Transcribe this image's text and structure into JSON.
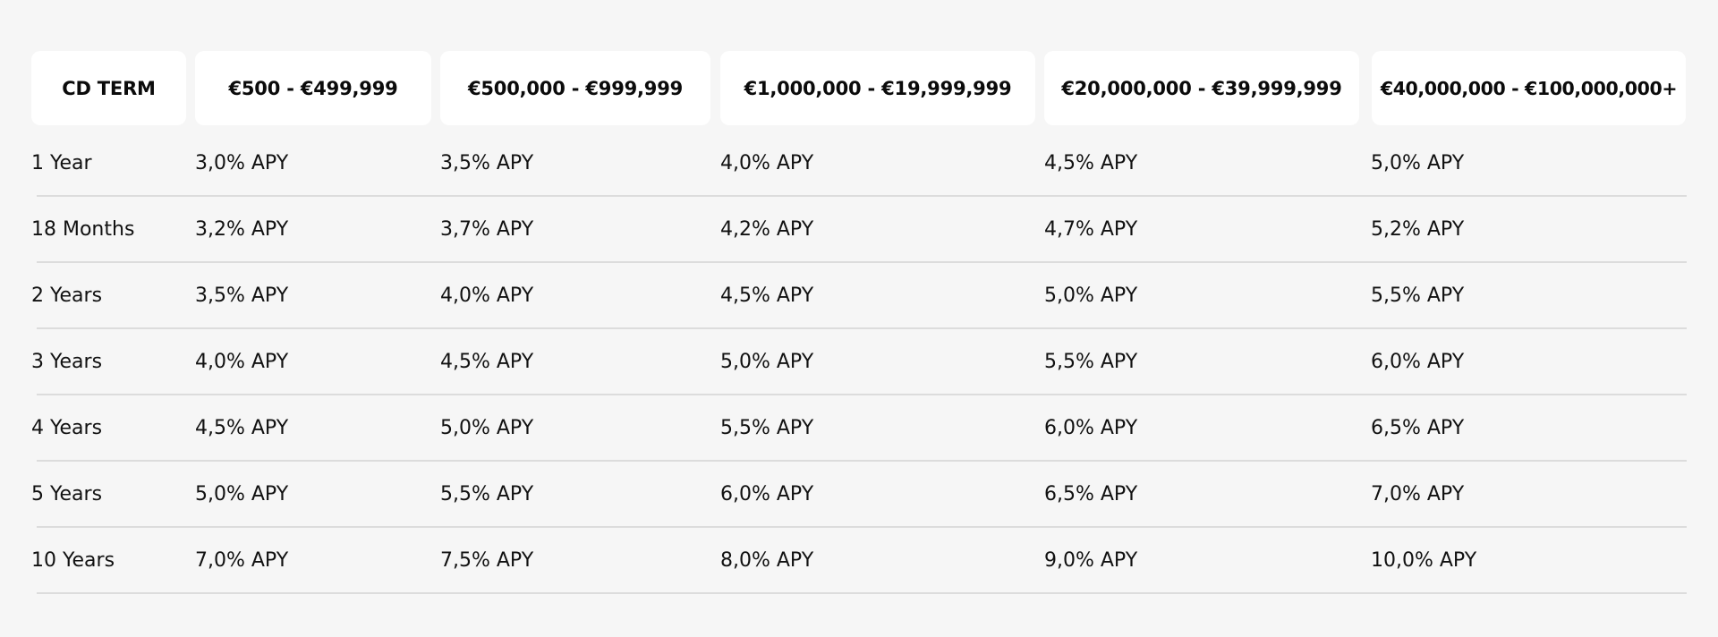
{
  "table": {
    "headers": [
      "CD TERM",
      "€500 - €499,999",
      "€500,000 - €999,999",
      "€1,000,000 - €19,999,999",
      "€20,000,000 - €39,999,999",
      "€40,000,000 - €100,000,000+"
    ],
    "rows": [
      [
        "1 Year",
        "3,0% APY",
        "3,5% APY",
        "4,0% APY",
        "4,5% APY",
        "5,0% APY"
      ],
      [
        "18 Months",
        "3,2% APY",
        "3,7% APY",
        "4,2% APY",
        "4,7% APY",
        "5,2% APY"
      ],
      [
        "2 Years",
        "3,5% APY",
        "4,0% APY",
        "4,5% APY",
        "5,0% APY",
        "5,5% APY"
      ],
      [
        "3 Years",
        "4,0% APY",
        "4,5% APY",
        "5,0% APY",
        "5,5% APY",
        "6,0% APY"
      ],
      [
        "4 Years",
        "4,5% APY",
        "5,0% APY",
        "5,5% APY",
        "6,0% APY",
        "6,5% APY"
      ],
      [
        "5 Years",
        "5,0% APY",
        "5,5% APY",
        "6,0% APY",
        "6,5% APY",
        "7,0% APY"
      ],
      [
        "10 Years",
        "7,0% APY",
        "7,5% APY",
        "8,0% APY",
        "9,0% APY",
        "10,0% APY"
      ]
    ]
  }
}
